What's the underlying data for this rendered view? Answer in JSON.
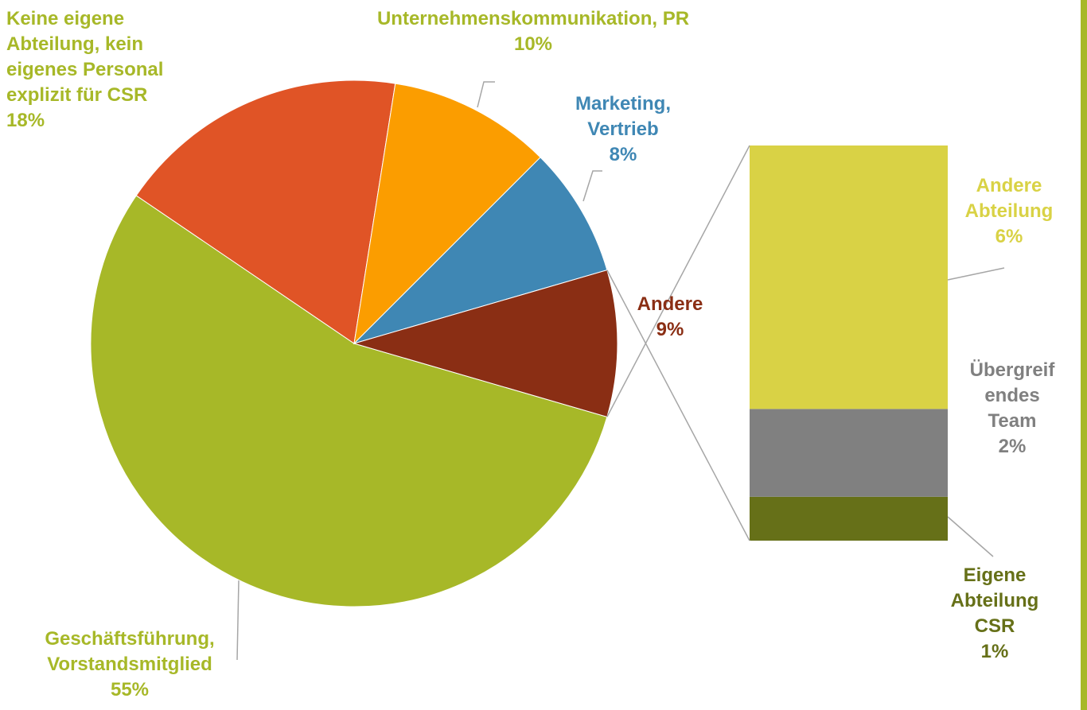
{
  "chart_data": {
    "type": "pie",
    "categories": [
      "Geschäftsführung,\nVorstandsmitglied",
      "Keine eigene\nAbteilung, kein\neigenes Personal\nexplizit für CSR",
      "Unternehmenskommunikation, PR",
      "Marketing,\nVertrieb",
      "Andere"
    ],
    "values": [
      55,
      18,
      10,
      8,
      9
    ],
    "value_labels": [
      "55%",
      "18%",
      "10%",
      "8%",
      "9%"
    ],
    "colors": [
      "#a7b828",
      "#e05426",
      "#fb9d00",
      "#3f87b4",
      "#8a2e14"
    ],
    "label_colors": [
      "#a7b828",
      "#a7b828",
      "#a7b828",
      "#3f87b4",
      "#8a2e14"
    ],
    "breakdown": {
      "type": "bar",
      "categories": [
        "Eigene\nAbteilung CSR",
        "Übergreif\nendes\nTeam",
        "Andere\nAbteilung"
      ],
      "values": [
        1,
        2,
        6
      ],
      "value_labels": [
        "1%",
        "2%",
        "6%"
      ],
      "colors": [
        "#667018",
        "#808080",
        "#d9d245"
      ],
      "label_colors": [
        "#667018",
        "#808080",
        "#d9d245"
      ]
    }
  }
}
